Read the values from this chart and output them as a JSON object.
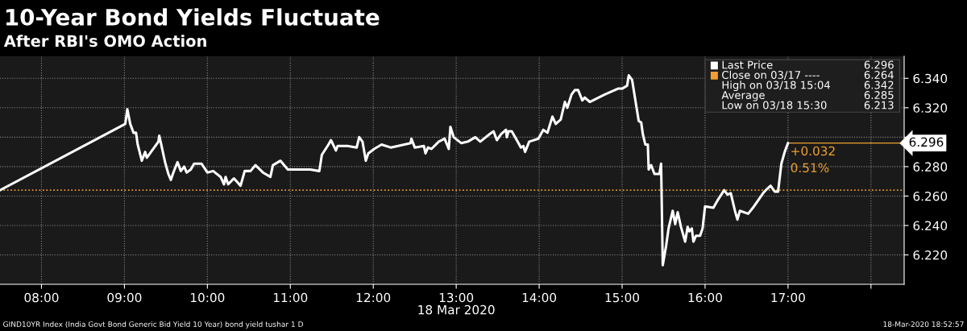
{
  "chart_data": {
    "type": "line",
    "title": "10-Year Bond Yields Fluctuate",
    "subtitle": "After RBI's OMO Action",
    "xlabel": "18 Mar 2020",
    "x": [
      7.5,
      9.01,
      9.035,
      9.07,
      9.11,
      9.14,
      9.16,
      9.21,
      9.25,
      9.27,
      9.41,
      9.42,
      9.44,
      9.49,
      9.53,
      9.56,
      9.59,
      9.64,
      9.68,
      9.72,
      9.75,
      9.8,
      9.84,
      9.93,
      10.0,
      10.07,
      10.16,
      10.2,
      10.22,
      10.25,
      10.32,
      10.4,
      10.45,
      10.52,
      10.58,
      10.67,
      10.76,
      10.79,
      10.88,
      10.97,
      11.24,
      11.35,
      11.38,
      11.46,
      11.49,
      11.55,
      11.57,
      11.69,
      11.8,
      11.83,
      11.87,
      11.91,
      11.94,
      12.01,
      12.1,
      12.21,
      12.45,
      12.46,
      12.5,
      12.61,
      12.63,
      12.66,
      12.7,
      12.79,
      12.86,
      12.91,
      12.93,
      12.97,
      13.06,
      13.14,
      13.23,
      13.29,
      13.4,
      13.45,
      13.49,
      13.54,
      13.6,
      13.61,
      13.63,
      13.67,
      13.74,
      13.78,
      13.81,
      13.83,
      13.88,
      13.99,
      14.05,
      14.1,
      14.16,
      14.2,
      14.26,
      14.31,
      14.34,
      14.39,
      14.43,
      14.47,
      14.52,
      14.55,
      14.61,
      14.79,
      14.95,
      15.0,
      15.06,
      15.08,
      15.12,
      15.2,
      15.23,
      15.25,
      15.28,
      15.31,
      15.32,
      15.35,
      15.39,
      15.45,
      15.47,
      15.49,
      15.53,
      15.56,
      15.61,
      15.64,
      15.67,
      15.71,
      15.76,
      15.79,
      15.81,
      15.84,
      15.86,
      15.89,
      15.94,
      15.97,
      16.0,
      16.1,
      16.15,
      16.23,
      16.27,
      16.31,
      16.36,
      16.39,
      16.42,
      16.52,
      16.59,
      16.7,
      16.75,
      16.79,
      16.84,
      16.88,
      16.92,
      16.96,
      17.0
    ],
    "series": [
      {
        "name": "Last Price",
        "color": "#ffffff",
        "values": [
          6.264,
          6.309,
          6.319,
          6.309,
          6.303,
          6.303,
          6.295,
          6.284,
          6.29,
          6.286,
          6.297,
          6.301,
          6.296,
          6.283,
          6.275,
          6.271,
          6.276,
          6.283,
          6.277,
          6.28,
          6.276,
          6.278,
          6.282,
          6.282,
          6.276,
          6.277,
          6.273,
          6.268,
          6.273,
          6.268,
          6.272,
          6.267,
          6.277,
          6.277,
          6.281,
          6.276,
          6.273,
          6.281,
          6.284,
          6.278,
          6.278,
          6.277,
          6.288,
          6.295,
          6.298,
          6.291,
          6.294,
          6.294,
          6.293,
          6.3,
          6.297,
          6.284,
          6.289,
          6.292,
          6.295,
          6.293,
          6.296,
          6.299,
          6.293,
          6.294,
          6.289,
          6.293,
          6.292,
          6.297,
          6.299,
          6.292,
          6.307,
          6.3,
          6.296,
          6.297,
          6.3,
          6.297,
          6.302,
          6.304,
          6.298,
          6.302,
          6.305,
          6.3,
          6.304,
          6.304,
          6.297,
          6.293,
          6.294,
          6.29,
          6.297,
          6.299,
          6.305,
          6.303,
          6.314,
          6.309,
          6.312,
          6.324,
          6.32,
          6.329,
          6.332,
          6.332,
          6.325,
          6.327,
          6.324,
          6.329,
          6.333,
          6.333,
          6.335,
          6.342,
          6.339,
          6.311,
          6.31,
          6.302,
          6.295,
          6.295,
          6.278,
          6.281,
          6.275,
          6.275,
          6.282,
          6.213,
          6.226,
          6.238,
          6.25,
          6.241,
          6.249,
          6.239,
          6.229,
          6.239,
          6.236,
          6.238,
          6.229,
          6.233,
          6.233,
          6.238,
          6.253,
          6.252,
          6.257,
          6.264,
          6.261,
          6.262,
          6.25,
          6.244,
          6.25,
          6.248,
          6.253,
          6.262,
          6.265,
          6.267,
          6.263,
          6.263,
          6.282,
          6.29,
          6.296
        ]
      }
    ],
    "xlim": [
      7.5,
      18.4
    ],
    "ylim": [
      6.2,
      6.355
    ],
    "xticks": [
      {
        "value": 8,
        "label": "08:00"
      },
      {
        "value": 9,
        "label": "09:00"
      },
      {
        "value": 10,
        "label": "10:00"
      },
      {
        "value": 11,
        "label": "11:00"
      },
      {
        "value": 12,
        "label": "12:00"
      },
      {
        "value": 13,
        "label": "13:00"
      },
      {
        "value": 14,
        "label": "14:00"
      },
      {
        "value": 15,
        "label": "15:00"
      },
      {
        "value": 16,
        "label": "16:00"
      },
      {
        "value": 17,
        "label": "17:00"
      },
      {
        "value": 18,
        "label": null
      }
    ],
    "yticks": [
      {
        "value": 6.22,
        "label": "6.220"
      },
      {
        "value": 6.24,
        "label": "6.240"
      },
      {
        "value": 6.26,
        "label": "6.260"
      },
      {
        "value": 6.28,
        "label": "6.280"
      },
      {
        "value": 6.3,
        "label": null
      },
      {
        "value": 6.32,
        "label": "6.320"
      },
      {
        "value": 6.34,
        "label": "6.340"
      }
    ],
    "ref_lines": [
      {
        "axis": "y",
        "value": 6.264,
        "label": "Close on 03/17 ----",
        "color": "#f0a030",
        "line_style": "dotted"
      },
      {
        "axis": "y",
        "value": 6.296,
        "label": "6.296",
        "color": "#f0a030",
        "line_style": "solid"
      }
    ],
    "annotations": [
      "6.296",
      "6.264",
      "High on 03/18 15:04",
      "6.342",
      "Average",
      "6.285",
      "Low on 03/18 15:30",
      "6.213",
      {
        "text": "+0.032",
        "x": 17.0,
        "y": 6.296
      },
      {
        "text": "0.51%",
        "x": 17.0,
        "y": 6.296
      },
      "GIND10YR Index (India Govt Bond Generic Bid Yield 10 Year) bond yield tushar 1 D",
      "18-Mar-2020 18:52:57"
    ],
    "grid": true,
    "legend": "top right",
    "marker": "none",
    "line_style": "solid"
  }
}
